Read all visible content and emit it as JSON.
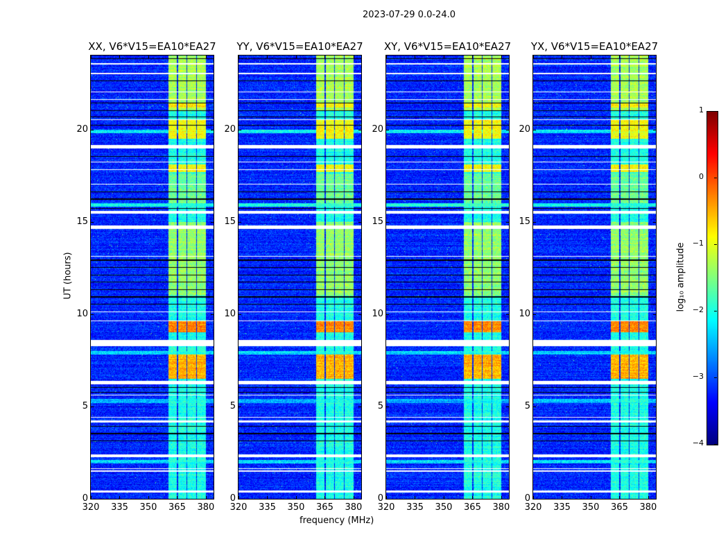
{
  "chart_data": {
    "type": "heatmap",
    "suptitle": "2023-07-29 0.0-24.0",
    "xlabel": "frequency (MHz)",
    "ylabel": "UT (hours)",
    "xlim": [
      320,
      384
    ],
    "ylim": [
      0,
      24
    ],
    "xticks": [
      320,
      335,
      350,
      365,
      380
    ],
    "yticks": [
      0,
      5,
      10,
      15,
      20
    ],
    "panels": [
      {
        "title": "XX, V6*V15=EA10*EA27",
        "seed": 11
      },
      {
        "title": "YY, V6*V15=EA10*EA27",
        "seed": 23
      },
      {
        "title": "XY, V6*V15=EA10*EA27",
        "seed": 37
      },
      {
        "title": "YX, V6*V15=EA10*EA27",
        "seed": 51
      }
    ],
    "colorbar": {
      "label": "log₁₀ amplitude",
      "colormap": "jet",
      "range": [
        -4,
        1
      ],
      "ticks": [
        1,
        0,
        -1,
        -2,
        -3,
        -4
      ]
    },
    "background_level": -3.2,
    "signal_bands_mhz": [
      [
        360.5,
        364.8
      ],
      [
        365.5,
        369.9
      ],
      [
        370.4,
        374.8
      ],
      [
        375.5,
        380.0
      ]
    ],
    "band_default_level": -2.0,
    "band_levels_by_time": [
      {
        "t": [
          6.5,
          7.8
        ],
        "level": -0.5
      },
      {
        "t": [
          9.0,
          9.6
        ],
        "level": -0.3
      },
      {
        "t": [
          11.0,
          15.0
        ],
        "level": -1.4
      },
      {
        "t": [
          16.0,
          17.6
        ],
        "level": -1.6
      },
      {
        "t": [
          17.7,
          18.1
        ],
        "level": -0.9
      },
      {
        "t": [
          19.5,
          20.5
        ],
        "level": -0.9
      },
      {
        "t": [
          21.0,
          24.0
        ],
        "level": -1.3
      },
      {
        "t": [
          21.2,
          21.4
        ],
        "level": -0.8
      }
    ],
    "broadband_bright_rows": [
      [
        1.9,
        2.1,
        -2.3
      ],
      [
        5.2,
        5.4,
        -2.5
      ],
      [
        7.8,
        8.0,
        -2.3
      ],
      [
        15.8,
        16.0,
        -2.0
      ],
      [
        19.8,
        20.0,
        -2.2
      ]
    ],
    "flagged_rows_hours": [
      [
        0.35,
        0.45
      ],
      [
        1.45,
        1.55
      ],
      [
        1.6,
        1.65
      ],
      [
        2.25,
        2.4
      ],
      [
        4.15,
        4.25
      ],
      [
        4.4,
        4.45
      ],
      [
        5.6,
        5.65
      ],
      [
        6.2,
        6.4
      ],
      [
        8.25,
        8.6
      ],
      [
        9.6,
        9.65
      ],
      [
        10.1,
        10.15
      ],
      [
        13.1,
        13.15
      ],
      [
        14.6,
        14.8
      ],
      [
        15.45,
        15.6
      ],
      [
        17.0,
        17.05
      ],
      [
        17.8,
        17.85
      ],
      [
        18.2,
        18.25
      ],
      [
        18.95,
        19.15
      ],
      [
        20.5,
        20.55
      ],
      [
        21.6,
        21.65
      ],
      [
        22.0,
        22.05
      ],
      [
        23.0,
        23.05
      ],
      [
        23.5,
        23.6
      ]
    ],
    "dropout_rows_hours": [
      [
        3.1,
        3.15
      ],
      [
        3.5,
        3.55
      ],
      [
        3.9,
        3.95
      ],
      [
        5.75,
        5.8
      ],
      [
        6.0,
        6.05
      ],
      [
        10.5,
        10.55
      ],
      [
        10.9,
        10.95
      ],
      [
        11.3,
        11.35
      ],
      [
        11.7,
        11.75
      ],
      [
        12.1,
        12.15
      ],
      [
        12.5,
        12.55
      ],
      [
        12.9,
        12.95
      ],
      [
        15.7,
        15.75
      ],
      [
        16.2,
        16.25
      ],
      [
        16.6,
        16.65
      ],
      [
        18.5,
        18.55
      ],
      [
        20.2,
        20.25
      ],
      [
        20.65,
        20.7
      ],
      [
        21.0,
        21.05
      ],
      [
        21.4,
        21.45
      ],
      [
        22.6,
        22.65
      ],
      [
        23.8,
        23.85
      ]
    ]
  }
}
